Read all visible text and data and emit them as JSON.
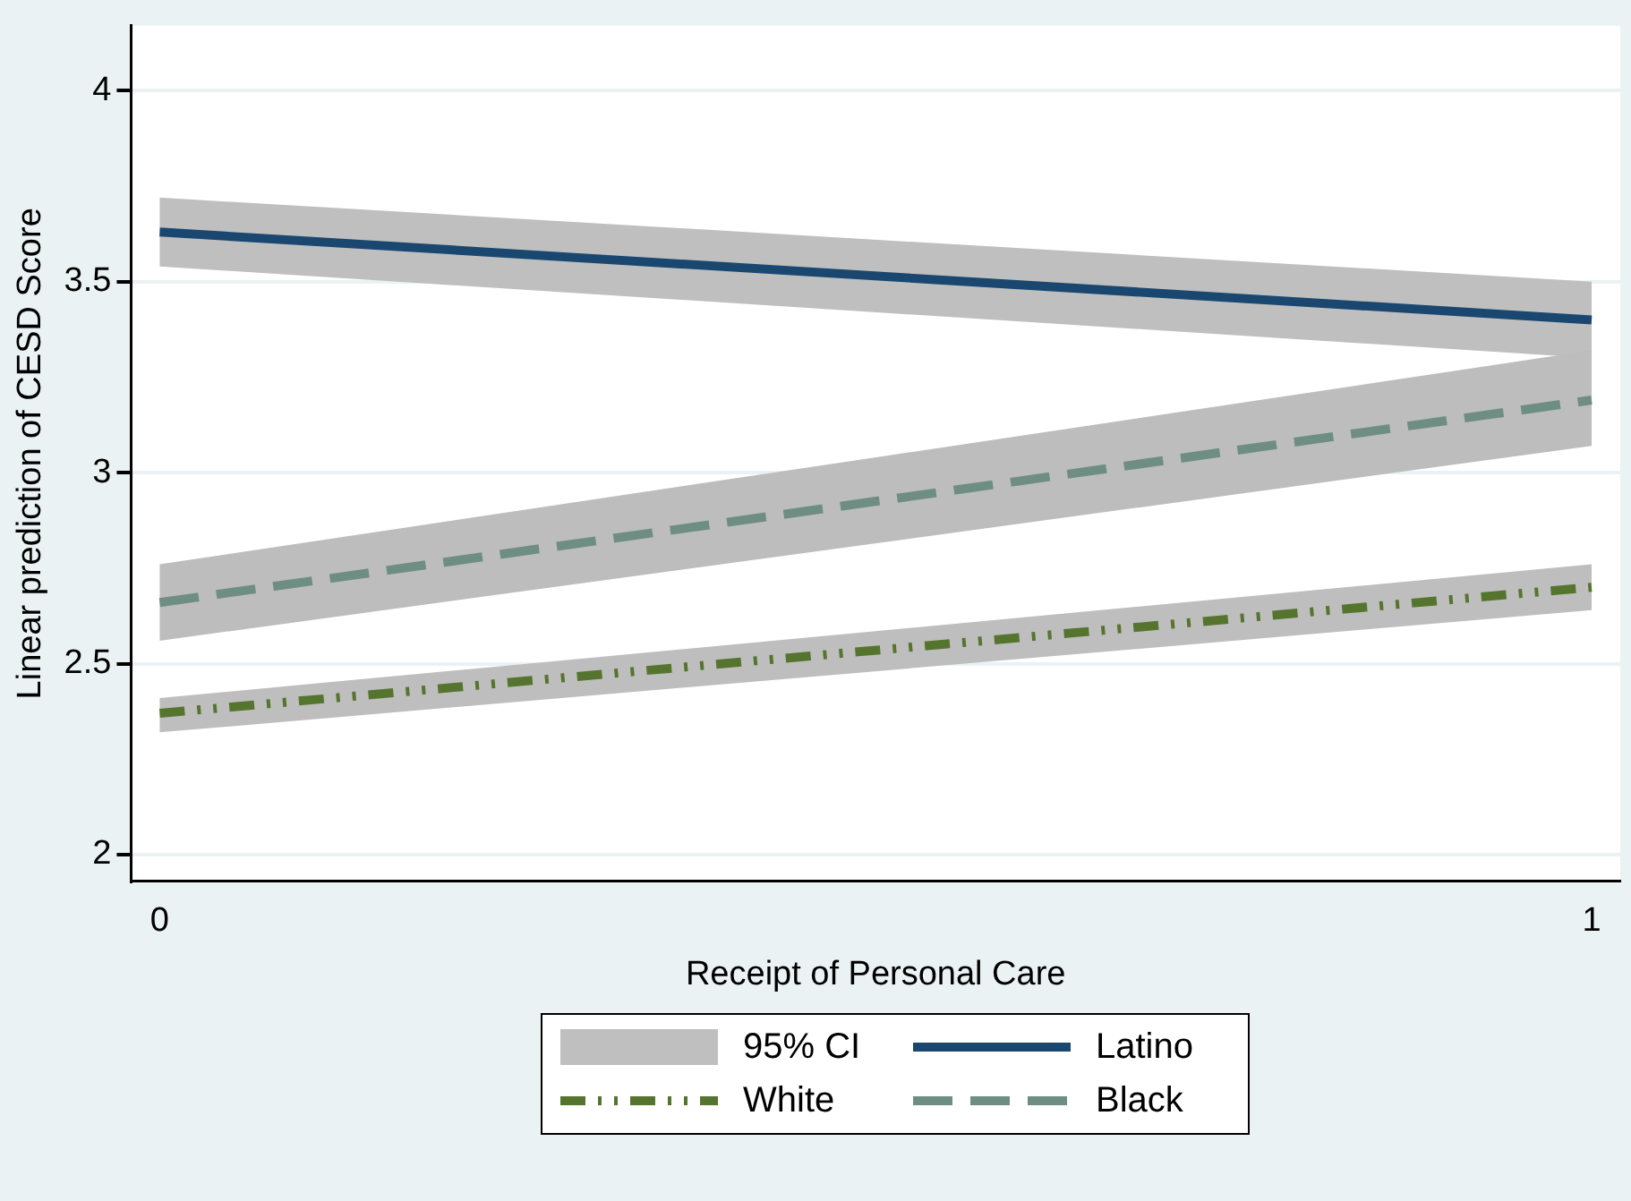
{
  "chart_data": {
    "type": "line",
    "xlabel": "Receipt of Personal Care",
    "ylabel": "Linear prediction of CESD Score",
    "x": [
      0,
      1
    ],
    "xlim": [
      -0.02,
      1.02
    ],
    "xticks": [
      0,
      1
    ],
    "ylim": [
      1.93,
      4.17
    ],
    "yticks": [
      2,
      2.5,
      3,
      3.5,
      4
    ],
    "grid": "y",
    "legend": "bottom",
    "marker": "none",
    "annotations": [
      "95% CI"
    ],
    "series": [
      {
        "name": "Latino",
        "color": "#1a476f",
        "values": [
          3.63,
          3.4
        ],
        "lower": [
          3.54,
          3.3
        ],
        "upper": [
          3.72,
          3.5
        ],
        "line_style": "solid"
      },
      {
        "name": "White",
        "color": "#55752f",
        "values": [
          2.37,
          2.7
        ],
        "lower": [
          2.32,
          2.64
        ],
        "upper": [
          2.41,
          2.76
        ],
        "line_style": "dotted"
      },
      {
        "name": "Black",
        "color": "#6e8e84",
        "values": [
          2.66,
          3.19
        ],
        "lower": [
          2.56,
          3.07
        ],
        "upper": [
          2.76,
          3.32
        ],
        "line_style": "dashed"
      }
    ]
  }
}
